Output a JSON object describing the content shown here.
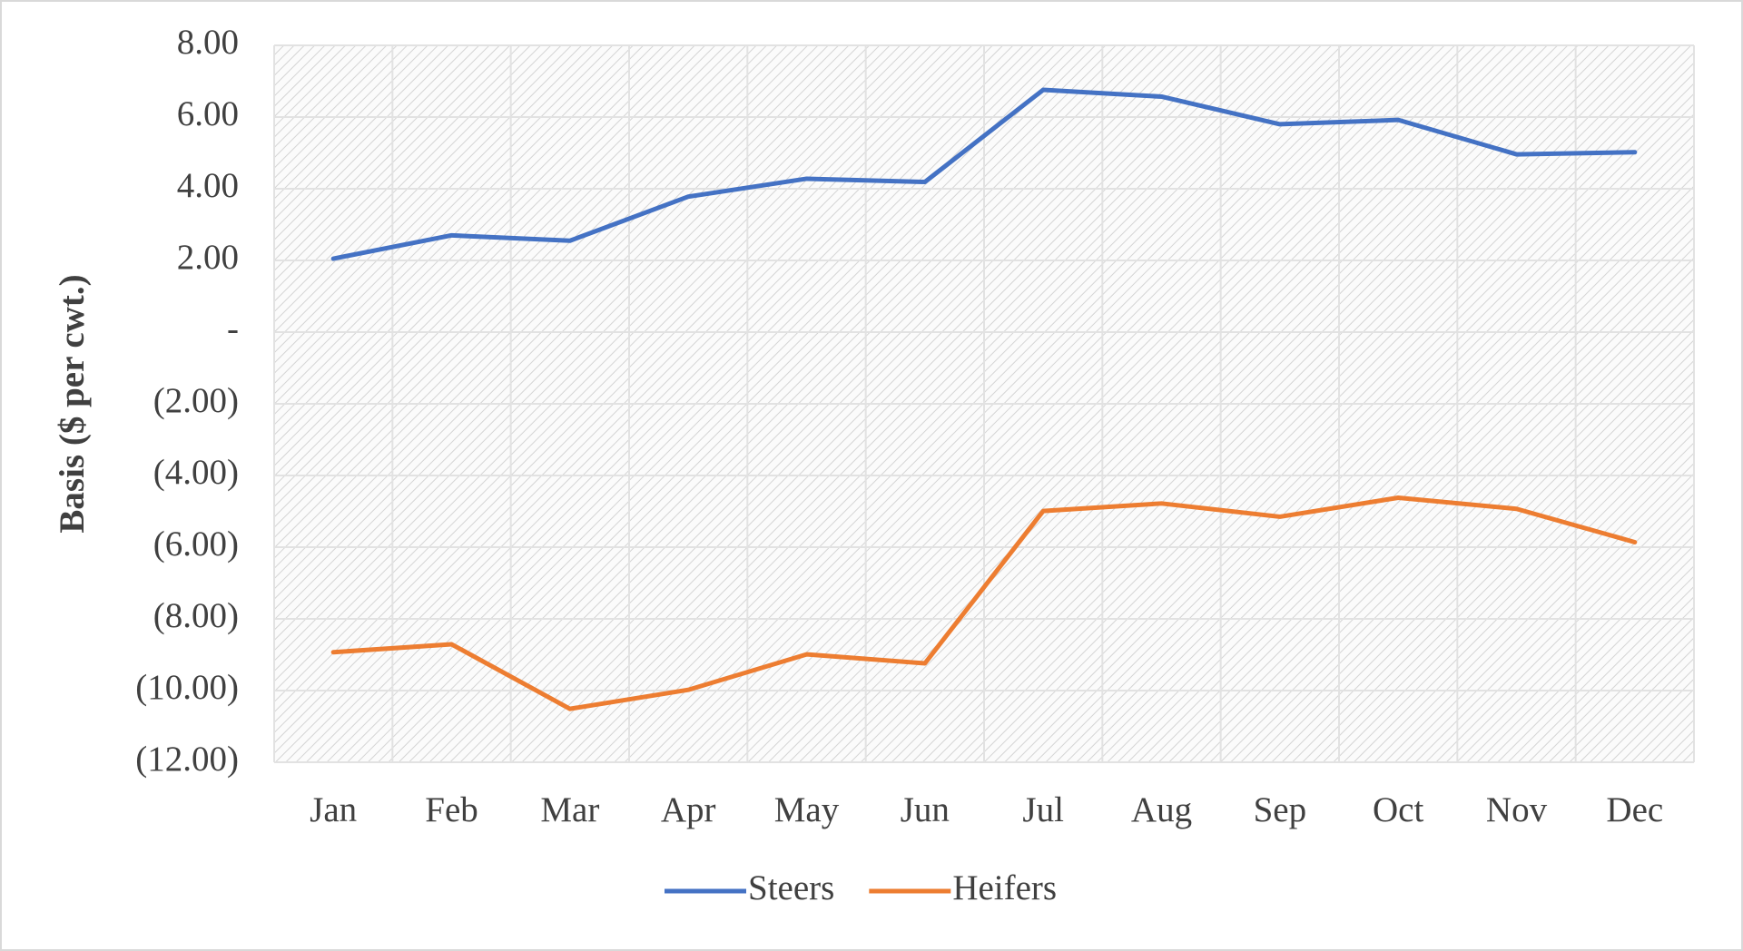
{
  "chart_data": {
    "type": "line",
    "y_label": "Basis ($ per cwt.)",
    "categories": [
      "Jan",
      "Feb",
      "Mar",
      "Apr",
      "May",
      "Jun",
      "Jul",
      "Aug",
      "Sep",
      "Oct",
      "Nov",
      "Dec"
    ],
    "series": [
      {
        "name": "Steers",
        "color": "#4472c4",
        "values": [
          2.05,
          2.7,
          2.55,
          3.78,
          4.28,
          4.19,
          6.76,
          6.57,
          5.8,
          5.92,
          4.96,
          5.02
        ]
      },
      {
        "name": "Heifers",
        "color": "#ed7d31",
        "values": [
          -8.93,
          -8.71,
          -10.51,
          -9.98,
          -8.99,
          -9.24,
          -4.99,
          -4.78,
          -5.15,
          -4.62,
          -4.93,
          -5.86
        ]
      }
    ],
    "ylim": [
      -12,
      8
    ],
    "yticks": [
      {
        "value": 8,
        "label": "8.00"
      },
      {
        "value": 6,
        "label": "6.00"
      },
      {
        "value": 4,
        "label": "4.00"
      },
      {
        "value": 2,
        "label": "2.00"
      },
      {
        "value": 0,
        "label": "-"
      },
      {
        "value": -2,
        "label": "(2.00)"
      },
      {
        "value": -4,
        "label": "(4.00)"
      },
      {
        "value": -6,
        "label": "(6.00)"
      },
      {
        "value": -8,
        "label": "(8.00)"
      },
      {
        "value": -10,
        "label": "(10.00)"
      },
      {
        "value": -12,
        "label": "(12.00)"
      }
    ],
    "grid": true,
    "legend": "bottom"
  }
}
